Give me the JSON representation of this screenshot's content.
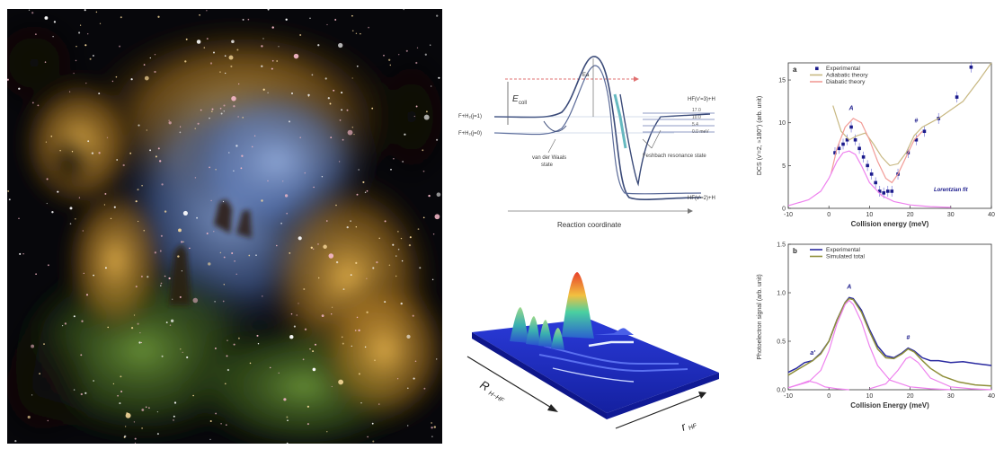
{
  "pes_diagram": {
    "e_coll_label": "E",
    "e_coll_sub": "coll",
    "reactant_upper": "F+H₂(j=1)",
    "reactant_lower": "F+H₂(j=0)",
    "vdw_label_1": "van der Waals",
    "vdw_label_2": "state",
    "feshbach_label": "Feshbach resonance state",
    "product_upper": "HF(v'=3)+H",
    "product_lower": "HF(v'=2)+H",
    "levels": [
      "17.0",
      "10.0",
      "5.4",
      "0.0 meV"
    ],
    "barrier_label": "Ea",
    "x_axis_label": "Reaction coordinate"
  },
  "surface_plot": {
    "r_label": "R",
    "r_sub": "H−HF",
    "r2_label": "r",
    "r2_sub": "HF"
  },
  "chart_data": [
    {
      "type": "line",
      "panel_letter": "a",
      "xlabel": "Collision energy (meV)",
      "ylabel": "DCS (v'=2, ≈180°) (arb. unit)",
      "xlim": [
        -10,
        40
      ],
      "ylim": [
        0,
        17
      ],
      "xticks": [
        "-10",
        "0",
        "10",
        "20",
        "30",
        "40"
      ],
      "yticks": [
        "0",
        "5",
        "10",
        "15"
      ],
      "legend": [
        "Experimental",
        "Adiabatic theory",
        "Diabatic theory"
      ],
      "legend_position": "top-left",
      "annotations": [
        "A",
        "#",
        "Lorentzian fit"
      ],
      "series": [
        {
          "name": "Experimental",
          "color": "#1c1c8c",
          "x": [
            1.5,
            2.5,
            3.5,
            4.5,
            5.5,
            6.5,
            7.5,
            8.5,
            9.5,
            10.5,
            11.5,
            12.5,
            13.5,
            14.5,
            15.5,
            17,
            19.5,
            21.5,
            23.5,
            27,
            31.5,
            35
          ],
          "y": [
            6.5,
            7,
            7.5,
            8,
            9.5,
            8,
            7,
            6,
            5,
            4,
            3,
            2,
            1.8,
            2,
            2,
            4,
            6.5,
            8,
            9,
            10.5,
            13,
            16.5
          ]
        },
        {
          "name": "Adiabatic theory",
          "color": "#c8b882",
          "x": [
            1,
            3,
            5,
            7,
            9,
            11,
            13,
            15,
            17,
            19,
            21,
            23,
            25,
            27,
            30,
            33,
            37,
            40
          ],
          "y": [
            12,
            9,
            8,
            8.5,
            8.8,
            7.5,
            6,
            5,
            5.2,
            6.5,
            8.5,
            9.5,
            10,
            10.5,
            11.5,
            12.5,
            15,
            17
          ]
        },
        {
          "name": "Diabatic theory",
          "color": "#f29b96",
          "x": [
            0.5,
            2,
            4,
            6,
            8,
            10,
            12,
            14,
            15.5,
            17,
            19,
            21,
            23
          ],
          "y": [
            4,
            7,
            9.5,
            10.5,
            10,
            8,
            5.5,
            3.5,
            3,
            4,
            6,
            8,
            9
          ]
        },
        {
          "name": "Lorentzian fit",
          "color": "#ee82ee",
          "x": [
            -10,
            -5,
            -2,
            0,
            2,
            3.5,
            5,
            6.5,
            8,
            10,
            13,
            16,
            20,
            25,
            30
          ],
          "y": [
            0.3,
            1,
            2,
            3.5,
            5.5,
            6.5,
            6.7,
            6.3,
            5,
            3,
            1.5,
            0.8,
            0.4,
            0.2,
            0.1
          ]
        }
      ]
    },
    {
      "type": "line",
      "panel_letter": "b",
      "xlabel": "Collision Energy (meV)",
      "ylabel": "Photoelectron signal (arb. unit)",
      "xlim": [
        -10,
        40
      ],
      "ylim": [
        0,
        1.5
      ],
      "xticks": [
        "-10",
        "0",
        "10",
        "20",
        "30",
        "40"
      ],
      "yticks": [
        "0.0",
        "0.5",
        "1.0",
        "1.5"
      ],
      "legend": [
        "Experimental",
        "Simulated total"
      ],
      "legend_position": "top-left",
      "annotations": [
        "a'",
        "A",
        "#"
      ],
      "series": [
        {
          "name": "Experimental",
          "color": "#2a2aa0",
          "x": [
            -10,
            -8,
            -6,
            -4,
            -2,
            0,
            2,
            4,
            5,
            6,
            8,
            10,
            12,
            14,
            16,
            18,
            19.5,
            21,
            23,
            25,
            27,
            30,
            33,
            36,
            40
          ],
          "y": [
            0.18,
            0.22,
            0.28,
            0.3,
            0.38,
            0.5,
            0.72,
            0.9,
            0.95,
            0.94,
            0.82,
            0.62,
            0.45,
            0.35,
            0.33,
            0.38,
            0.43,
            0.4,
            0.33,
            0.3,
            0.3,
            0.28,
            0.29,
            0.27,
            0.25
          ]
        },
        {
          "name": "Simulated total",
          "color": "#8f8f3a",
          "x": [
            -10,
            -8,
            -6,
            -4,
            -2,
            0,
            2,
            4,
            5,
            6,
            8,
            10,
            12,
            14,
            16,
            18,
            19.5,
            21,
            23,
            25,
            28,
            32,
            36,
            40
          ],
          "y": [
            0.15,
            0.2,
            0.25,
            0.3,
            0.37,
            0.5,
            0.72,
            0.9,
            0.94,
            0.93,
            0.8,
            0.6,
            0.42,
            0.33,
            0.32,
            0.37,
            0.42,
            0.39,
            0.3,
            0.22,
            0.14,
            0.08,
            0.05,
            0.04
          ]
        },
        {
          "name": "Peak component A",
          "color": "#ee82ee",
          "x": [
            -10,
            -5,
            -2,
            0,
            2,
            4,
            5,
            6,
            8,
            10,
            12,
            15,
            20,
            25,
            30
          ],
          "y": [
            0.02,
            0.08,
            0.2,
            0.4,
            0.68,
            0.88,
            0.92,
            0.88,
            0.7,
            0.45,
            0.25,
            0.1,
            0.03,
            0.01,
            0.0
          ]
        },
        {
          "name": "Peak component #",
          "color": "#ee82ee",
          "x": [
            10,
            14,
            17,
            19,
            20,
            22,
            25,
            30,
            35,
            40
          ],
          "y": [
            0.01,
            0.06,
            0.2,
            0.32,
            0.34,
            0.28,
            0.12,
            0.03,
            0.01,
            0.0
          ]
        },
        {
          "name": "Peak component a'",
          "color": "#ee82ee",
          "x": [
            -10,
            -7,
            -5,
            -3,
            -1,
            2,
            5
          ],
          "y": [
            0.02,
            0.06,
            0.09,
            0.07,
            0.03,
            0.01,
            0.0
          ]
        }
      ]
    }
  ]
}
